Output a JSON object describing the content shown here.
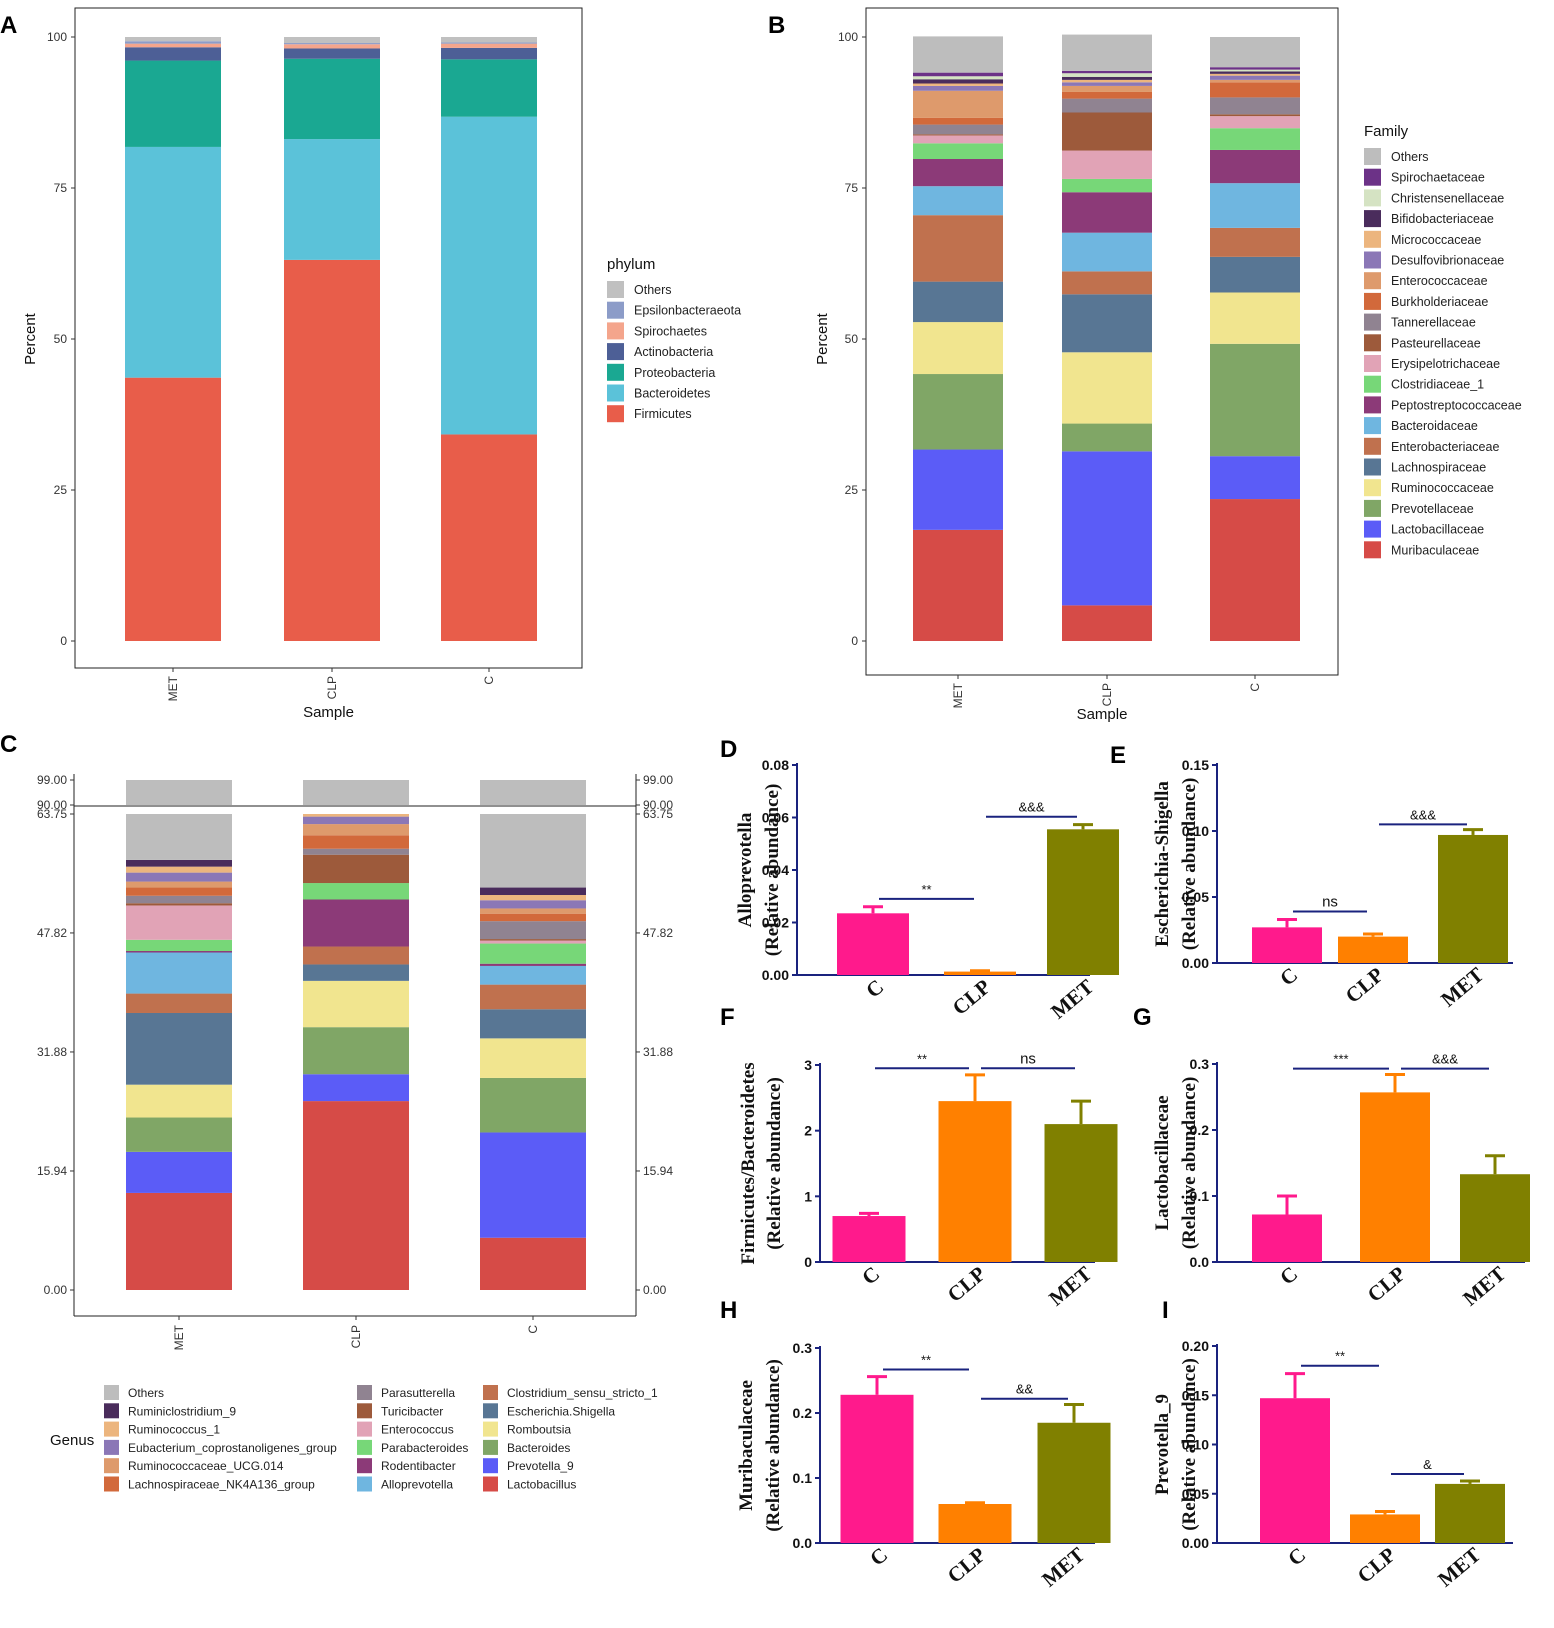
{
  "figure": {
    "panel_letters": [
      "A",
      "B",
      "C",
      "D",
      "E",
      "F",
      "G",
      "H",
      "I"
    ]
  },
  "chart_data": [
    {
      "panel": "A",
      "type": "bar",
      "stacked": true,
      "title": "",
      "xlabel": "Sample",
      "ylabel": "Percent",
      "categories": [
        "MET",
        "CLP",
        "C"
      ],
      "ylim": [
        0,
        100
      ],
      "yticks": [
        "0",
        "25",
        "50",
        "75",
        "100"
      ],
      "legend_title": "phylum",
      "legend_position": "right",
      "series": [
        {
          "name": "Firmicutes",
          "color": "#e85d4a",
          "values": [
            43.6,
            63.1,
            34.2
          ]
        },
        {
          "name": "Bacteroidetes",
          "color": "#5bc2d9",
          "values": [
            38.2,
            20.0,
            52.6
          ]
        },
        {
          "name": "Proteobacteria",
          "color": "#1aa892",
          "values": [
            14.3,
            13.3,
            9.5
          ]
        },
        {
          "name": "Actinobacteria",
          "color": "#4d5f96",
          "values": [
            2.2,
            1.7,
            1.9
          ]
        },
        {
          "name": "Spirochaetes",
          "color": "#f4a58c",
          "values": [
            0.6,
            0.7,
            0.7
          ]
        },
        {
          "name": "Epsilonbacteraeota",
          "color": "#8c9cc8",
          "values": [
            0.4,
            0.2,
            0.2
          ]
        },
        {
          "name": "Others",
          "color": "#c0c0c0",
          "values": [
            0.7,
            1.0,
            0.9
          ]
        }
      ]
    },
    {
      "panel": "B",
      "type": "bar",
      "stacked": true,
      "title": "",
      "xlabel": "Sample",
      "ylabel": "Percent",
      "categories": [
        "MET",
        "CLP",
        "C"
      ],
      "ylim": [
        0,
        100
      ],
      "yticks": [
        "0",
        "25",
        "50",
        "75",
        "100"
      ],
      "legend_title": "Family",
      "legend_position": "right",
      "series": [
        {
          "name": "Muribaculaceae",
          "color": "#d64b47",
          "values": [
            18.4,
            5.9,
            23.5
          ]
        },
        {
          "name": "Lactobacillaceae",
          "color": "#5b5cf7",
          "values": [
            13.3,
            25.5,
            7.1
          ]
        },
        {
          "name": "Prevotellaceae",
          "color": "#80a666",
          "values": [
            12.5,
            4.6,
            18.6
          ]
        },
        {
          "name": "Ruminococcaceae",
          "color": "#f1e58f",
          "values": [
            8.6,
            11.8,
            8.5
          ]
        },
        {
          "name": "Lachnospiraceae",
          "color": "#587694",
          "values": [
            6.7,
            9.6,
            5.9
          ]
        },
        {
          "name": "Enterobacteriaceae",
          "color": "#c0714e",
          "values": [
            11.0,
            3.8,
            4.8
          ]
        },
        {
          "name": "Bacteroidaceae",
          "color": "#6fb6e0",
          "values": [
            4.8,
            6.4,
            7.4
          ]
        },
        {
          "name": "Peptostreptococcaceae",
          "color": "#8c3a78",
          "values": [
            4.5,
            6.7,
            5.5
          ]
        },
        {
          "name": "Clostridiaceae_1",
          "color": "#77d778",
          "values": [
            2.6,
            2.2,
            3.6
          ]
        },
        {
          "name": "Erysipelotrichaceae",
          "color": "#e1a3b6",
          "values": [
            1.3,
            4.7,
            2.0
          ]
        },
        {
          "name": "Pasteurellaceae",
          "color": "#9d5a3b",
          "values": [
            0.2,
            6.3,
            0.3
          ]
        },
        {
          "name": "Tannerellaceae",
          "color": "#908391",
          "values": [
            1.6,
            2.3,
            2.8
          ]
        },
        {
          "name": "Burkholderiaceae",
          "color": "#d2693b",
          "values": [
            1.1,
            1.1,
            2.5
          ]
        },
        {
          "name": "Enterococcaceae",
          "color": "#de9a6c",
          "values": [
            4.5,
            1.0,
            0.4
          ]
        },
        {
          "name": "Desulfovibrionaceae",
          "color": "#8b77b6",
          "values": [
            0.8,
            0.6,
            0.7
          ]
        },
        {
          "name": "Micrococcaceae",
          "color": "#ecb57e",
          "values": [
            0.4,
            0.4,
            0.3
          ]
        },
        {
          "name": "Bifidobacteriaceae",
          "color": "#4a2c5c",
          "values": [
            0.7,
            0.5,
            0.4
          ]
        },
        {
          "name": "Christensenellaceae",
          "color": "#d5e3c3",
          "values": [
            0.5,
            0.6,
            0.3
          ]
        },
        {
          "name": "Spirochaetaceae",
          "color": "#6c3287",
          "values": [
            0.6,
            0.4,
            0.4
          ]
        },
        {
          "name": "Others",
          "color": "#bdbdbd",
          "values": [
            6.0,
            6.0,
            5.0
          ]
        }
      ]
    },
    {
      "panel": "C",
      "type": "bar",
      "stacked": true,
      "broken_axis": true,
      "title": "",
      "xlabel": "",
      "ylabel": "",
      "categories": [
        "MET",
        "CLP",
        "C"
      ],
      "yticks_lower": [
        "0.00",
        "15.94",
        "31.88",
        "47.82",
        "63.75"
      ],
      "yticks_upper": [
        "90.00",
        "99.00"
      ],
      "axis_break": [
        65,
        90
      ],
      "legend_title": "Genus",
      "legend_position": "bottom",
      "series": [
        {
          "name": "Lactobacillus",
          "color": "#d64b47",
          "values": [
            13.0,
            25.3,
            7.0
          ]
        },
        {
          "name": "Prevotella_9",
          "color": "#5b5cf7",
          "values": [
            5.5,
            3.6,
            14.1
          ]
        },
        {
          "name": "Bacteroides",
          "color": "#80a666",
          "values": [
            4.6,
            6.3,
            7.3
          ]
        },
        {
          "name": "Romboutsia",
          "color": "#f1e58f",
          "values": [
            4.4,
            6.2,
            5.3
          ]
        },
        {
          "name": "Escherichia.Shigella",
          "color": "#587694",
          "values": [
            9.6,
            2.2,
            3.9
          ]
        },
        {
          "name": "Clostridium_sensu_stricto_1",
          "color": "#c0714e",
          "values": [
            2.6,
            2.4,
            3.3
          ]
        },
        {
          "name": "Alloprevotella",
          "color": "#6fb6e0",
          "values": [
            5.5,
            0.0,
            2.5
          ]
        },
        {
          "name": "Rodentibacter",
          "color": "#8c3a78",
          "values": [
            0.2,
            6.3,
            0.3
          ]
        },
        {
          "name": "Parabacteroides",
          "color": "#77d778",
          "values": [
            1.5,
            2.2,
            2.7
          ]
        },
        {
          "name": "Enterococcus",
          "color": "#e1a3b6",
          "values": [
            4.6,
            0.0,
            0.4
          ]
        },
        {
          "name": "Turicibacter",
          "color": "#9d5a3b",
          "values": [
            0.3,
            3.8,
            0.2
          ]
        },
        {
          "name": "Parasutterella",
          "color": "#908391",
          "values": [
            1.0,
            0.8,
            2.4
          ]
        },
        {
          "name": "Lachnospiraceae_NK4A136_group",
          "color": "#d2693b",
          "values": [
            1.1,
            1.8,
            1.0
          ]
        },
        {
          "name": "Ruminococcaceae_UCG.014",
          "color": "#de9a6c",
          "values": [
            0.8,
            1.5,
            0.7
          ]
        },
        {
          "name": "Eubacterium_coprostanoligenes_group",
          "color": "#8b77b6",
          "values": [
            1.2,
            1.0,
            1.1
          ]
        },
        {
          "name": "Ruminococcus_1",
          "color": "#ecb57e",
          "values": [
            0.8,
            0.7,
            0.7
          ]
        },
        {
          "name": "Ruminiclostridium_9",
          "color": "#4a2c5c",
          "values": [
            0.9,
            0.9,
            1.0
          ]
        },
        {
          "name": "Others",
          "color": "#bdbdbd",
          "values": [
            44.6,
            35.2,
            49.0
          ]
        }
      ]
    },
    {
      "panel": "D",
      "type": "bar",
      "ylabel": "Alloprevotella",
      "ylabel_sub": "(Relative abundance)",
      "categories": [
        "C",
        "CLP",
        "MET"
      ],
      "values": [
        0.0235,
        0.0013,
        0.0555
      ],
      "errors": [
        0.0025,
        0.0003,
        0.0018
      ],
      "ylim": [
        0,
        0.08
      ],
      "yticks": [
        "0.00",
        "0.02",
        "0.04",
        "0.06",
        "0.08"
      ],
      "colors": [
        "#ff1a8c",
        "#ff8000",
        "#808000"
      ],
      "annotations": [
        {
          "from": 0,
          "to": 1,
          "label": "**",
          "y": 0.029
        },
        {
          "from": 1,
          "to": 2,
          "label": "&&&",
          "y": 0.0603
        }
      ]
    },
    {
      "panel": "E",
      "type": "bar",
      "ylabel": "Escherichia-Shigella",
      "ylabel_sub": "(Relative abundance)",
      "categories": [
        "C",
        "CLP",
        "MET"
      ],
      "values": [
        0.027,
        0.02,
        0.097
      ],
      "errors": [
        0.006,
        0.002,
        0.004
      ],
      "ylim": [
        0,
        0.15
      ],
      "yticks": [
        "0.00",
        "0.05",
        "0.10",
        "0.15"
      ],
      "colors": [
        "#ff1a8c",
        "#ff8000",
        "#808000"
      ],
      "annotations": [
        {
          "from": 0,
          "to": 1,
          "label": "ns",
          "y": 0.039
        },
        {
          "from": 1,
          "to": 2,
          "label": "&&&",
          "y": 0.105
        }
      ]
    },
    {
      "panel": "F",
      "type": "bar",
      "ylabel": "Firmicutes/Bacteroidetes",
      "ylabel_sub": "(Relative abundance)",
      "categories": [
        "C",
        "CLP",
        "MET"
      ],
      "values": [
        0.7,
        2.45,
        2.1
      ],
      "errors": [
        0.04,
        0.4,
        0.35
      ],
      "ylim": [
        0,
        3
      ],
      "yticks": [
        "0",
        "1",
        "2",
        "3"
      ],
      "colors": [
        "#ff1a8c",
        "#ff8000",
        "#808000"
      ],
      "annotations": [
        {
          "from": 0,
          "to": 1,
          "label": "**",
          "y": 2.95
        },
        {
          "from": 1,
          "to": 2,
          "label": "ns",
          "y": 2.95
        }
      ]
    },
    {
      "panel": "G",
      "type": "bar",
      "ylabel": "Lactobacillaceae",
      "ylabel_sub": "(Relative abundance)",
      "categories": [
        "C",
        "CLP",
        "MET"
      ],
      "values": [
        0.072,
        0.257,
        0.133
      ],
      "errors": [
        0.028,
        0.027,
        0.028
      ],
      "ylim": [
        0,
        0.3
      ],
      "yticks": [
        "0.0",
        "0.1",
        "0.2",
        "0.3"
      ],
      "colors": [
        "#ff1a8c",
        "#ff8000",
        "#808000"
      ],
      "annotations": [
        {
          "from": 0,
          "to": 1,
          "label": "***",
          "y": 0.293
        },
        {
          "from": 1,
          "to": 2,
          "label": "&&&",
          "y": 0.293
        }
      ]
    },
    {
      "panel": "H",
      "type": "bar",
      "ylabel": "Muribaculaceae",
      "ylabel_sub": "(Relative abundance)",
      "categories": [
        "C",
        "CLP",
        "MET"
      ],
      "values": [
        0.228,
        0.06,
        0.185
      ],
      "errors": [
        0.028,
        0.002,
        0.028
      ],
      "ylim": [
        0,
        0.3
      ],
      "yticks": [
        "0.0",
        "0.1",
        "0.2",
        "0.3"
      ],
      "colors": [
        "#ff1a8c",
        "#ff8000",
        "#808000"
      ],
      "annotations": [
        {
          "from": 0,
          "to": 1,
          "label": "**",
          "y": 0.267
        },
        {
          "from": 1,
          "to": 2,
          "label": "&&",
          "y": 0.222
        }
      ]
    },
    {
      "panel": "I",
      "type": "bar",
      "ylabel": "Prevotella_9",
      "ylabel_sub": "(Relative abundance)",
      "categories": [
        "C",
        "CLP",
        "MET"
      ],
      "values": [
        0.147,
        0.029,
        0.06
      ],
      "errors": [
        0.025,
        0.003,
        0.003
      ],
      "ylim": [
        0,
        0.2
      ],
      "yticks": [
        "0.00",
        "0.05",
        "0.10",
        "0.15",
        "0.20"
      ],
      "colors": [
        "#ff1a8c",
        "#ff8000",
        "#808000"
      ],
      "annotations": [
        {
          "from": 0,
          "to": 1,
          "label": "**",
          "y": 0.18
        },
        {
          "from": 1,
          "to": 2,
          "label": "&",
          "y": 0.07
        }
      ]
    }
  ]
}
